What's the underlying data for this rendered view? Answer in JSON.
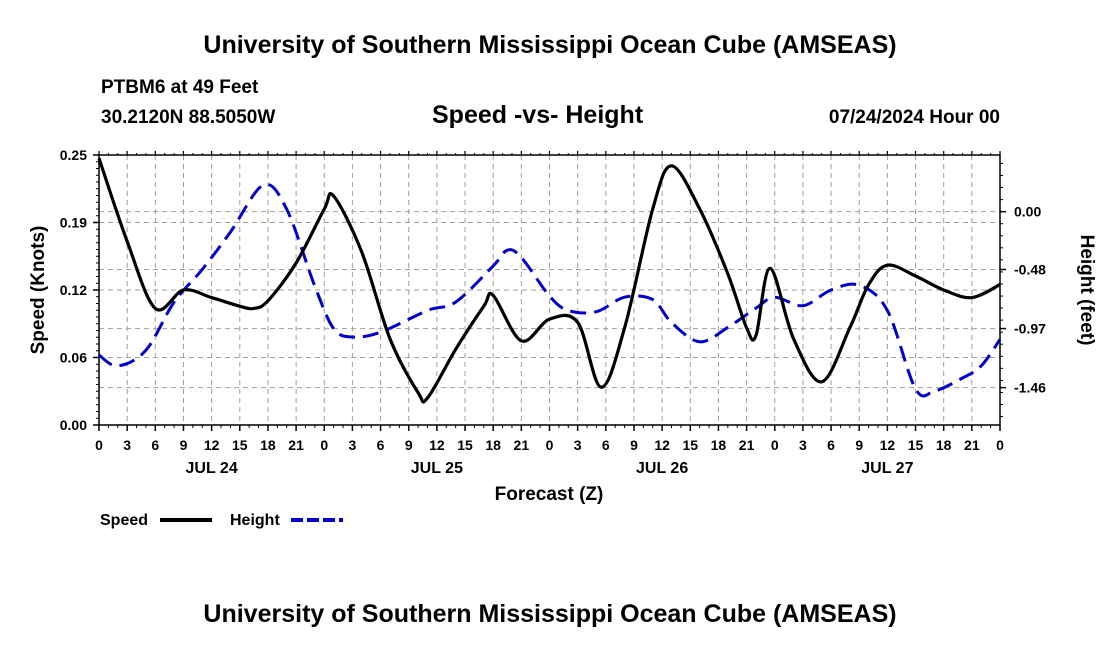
{
  "header": {
    "title": "University of Southern Mississippi Ocean Cube (AMSEAS)",
    "station": "PTBM6 at 49 Feet",
    "coords": "30.2120N  88.5050W",
    "chart_title": "Speed -vs- Height",
    "run": "07/24/2024 Hour 00"
  },
  "footer": {
    "title": "University of Southern Mississippi Ocean Cube (AMSEAS)"
  },
  "colors": {
    "speed": "#000000",
    "height": "#0000cc",
    "grid": "#a0a0a0"
  },
  "chart_data": {
    "type": "line",
    "title": "Speed -vs- Height",
    "xlabel": "Forecast (Z)",
    "ylabel": "Speed (Knots)",
    "y2label": "Height (feet)",
    "x_hours_range": [
      0,
      96
    ],
    "x_tick_labels": [
      "0",
      "3",
      "6",
      "9",
      "12",
      "15",
      "18",
      "21",
      "0",
      "3",
      "6",
      "9",
      "12",
      "15",
      "18",
      "21",
      "0",
      "3",
      "6",
      "9",
      "12",
      "15",
      "18",
      "21",
      "0",
      "3",
      "6",
      "9",
      "12",
      "15",
      "18",
      "21",
      "0"
    ],
    "date_labels": [
      {
        "label": "JUL 24",
        "hour": 12
      },
      {
        "label": "JUL 25",
        "hour": 36
      },
      {
        "label": "JUL 26",
        "hour": 60
      },
      {
        "label": "JUL 27",
        "hour": 84
      }
    ],
    "ylim": [
      0,
      0.25
    ],
    "yticks": [
      "0.00",
      "0.06",
      "0.12",
      "0.19",
      "0.25"
    ],
    "y2lim": [
      -1.77,
      0.47
    ],
    "y2ticks": [
      "-1.46",
      "-0.97",
      "-0.48",
      "0.00"
    ],
    "legend": [
      {
        "name": "Speed",
        "style": "solid"
      },
      {
        "name": "Height",
        "style": "dashed"
      }
    ],
    "series": [
      {
        "name": "Speed",
        "unit": "knots",
        "points": [
          [
            0,
            0.247
          ],
          [
            3,
            0.17
          ],
          [
            6,
            0.108
          ],
          [
            9,
            0.125
          ],
          [
            12,
            0.118
          ],
          [
            15,
            0.11
          ],
          [
            16.5,
            0.108
          ],
          [
            18,
            0.115
          ],
          [
            21,
            0.15
          ],
          [
            24,
            0.2
          ],
          [
            25,
            0.212
          ],
          [
            28,
            0.16
          ],
          [
            31,
            0.08
          ],
          [
            34,
            0.03
          ],
          [
            35,
            0.025
          ],
          [
            38,
            0.07
          ],
          [
            41,
            0.11
          ],
          [
            42,
            0.12
          ],
          [
            45,
            0.078
          ],
          [
            48,
            0.098
          ],
          [
            51,
            0.095
          ],
          [
            53.5,
            0.035
          ],
          [
            56,
            0.09
          ],
          [
            59,
            0.2
          ],
          [
            61,
            0.24
          ],
          [
            64,
            0.2
          ],
          [
            67,
            0.14
          ],
          [
            69,
            0.09
          ],
          [
            70,
            0.083
          ],
          [
            71.5,
            0.145
          ],
          [
            74,
            0.08
          ],
          [
            77,
            0.04
          ],
          [
            80,
            0.09
          ],
          [
            82,
            0.13
          ],
          [
            84,
            0.148
          ],
          [
            87,
            0.138
          ],
          [
            90,
            0.125
          ],
          [
            93,
            0.118
          ],
          [
            96,
            0.13
          ]
        ]
      },
      {
        "name": "Height",
        "unit": "feet",
        "points": [
          [
            0,
            -1.19
          ],
          [
            2,
            -1.28
          ],
          [
            5,
            -1.15
          ],
          [
            8,
            -0.75
          ],
          [
            11,
            -0.48
          ],
          [
            14,
            -0.17
          ],
          [
            17.5,
            0.22
          ],
          [
            20,
            0.02
          ],
          [
            23,
            -0.62
          ],
          [
            25,
            -0.97
          ],
          [
            27,
            -1.04
          ],
          [
            30,
            -1.0
          ],
          [
            35,
            -0.82
          ],
          [
            38,
            -0.75
          ],
          [
            42,
            -0.45
          ],
          [
            43.5,
            -0.32
          ],
          [
            45,
            -0.38
          ],
          [
            48,
            -0.7
          ],
          [
            50,
            -0.82
          ],
          [
            53,
            -0.83
          ],
          [
            56,
            -0.71
          ],
          [
            59,
            -0.73
          ],
          [
            61,
            -0.92
          ],
          [
            64,
            -1.08
          ],
          [
            67,
            -0.96
          ],
          [
            70,
            -0.8
          ],
          [
            72,
            -0.71
          ],
          [
            75,
            -0.78
          ],
          [
            78,
            -0.65
          ],
          [
            81,
            -0.61
          ],
          [
            84,
            -0.82
          ],
          [
            87,
            -1.47
          ],
          [
            89,
            -1.49
          ],
          [
            92,
            -1.38
          ],
          [
            94,
            -1.28
          ],
          [
            96,
            -1.06
          ]
        ]
      }
    ]
  }
}
